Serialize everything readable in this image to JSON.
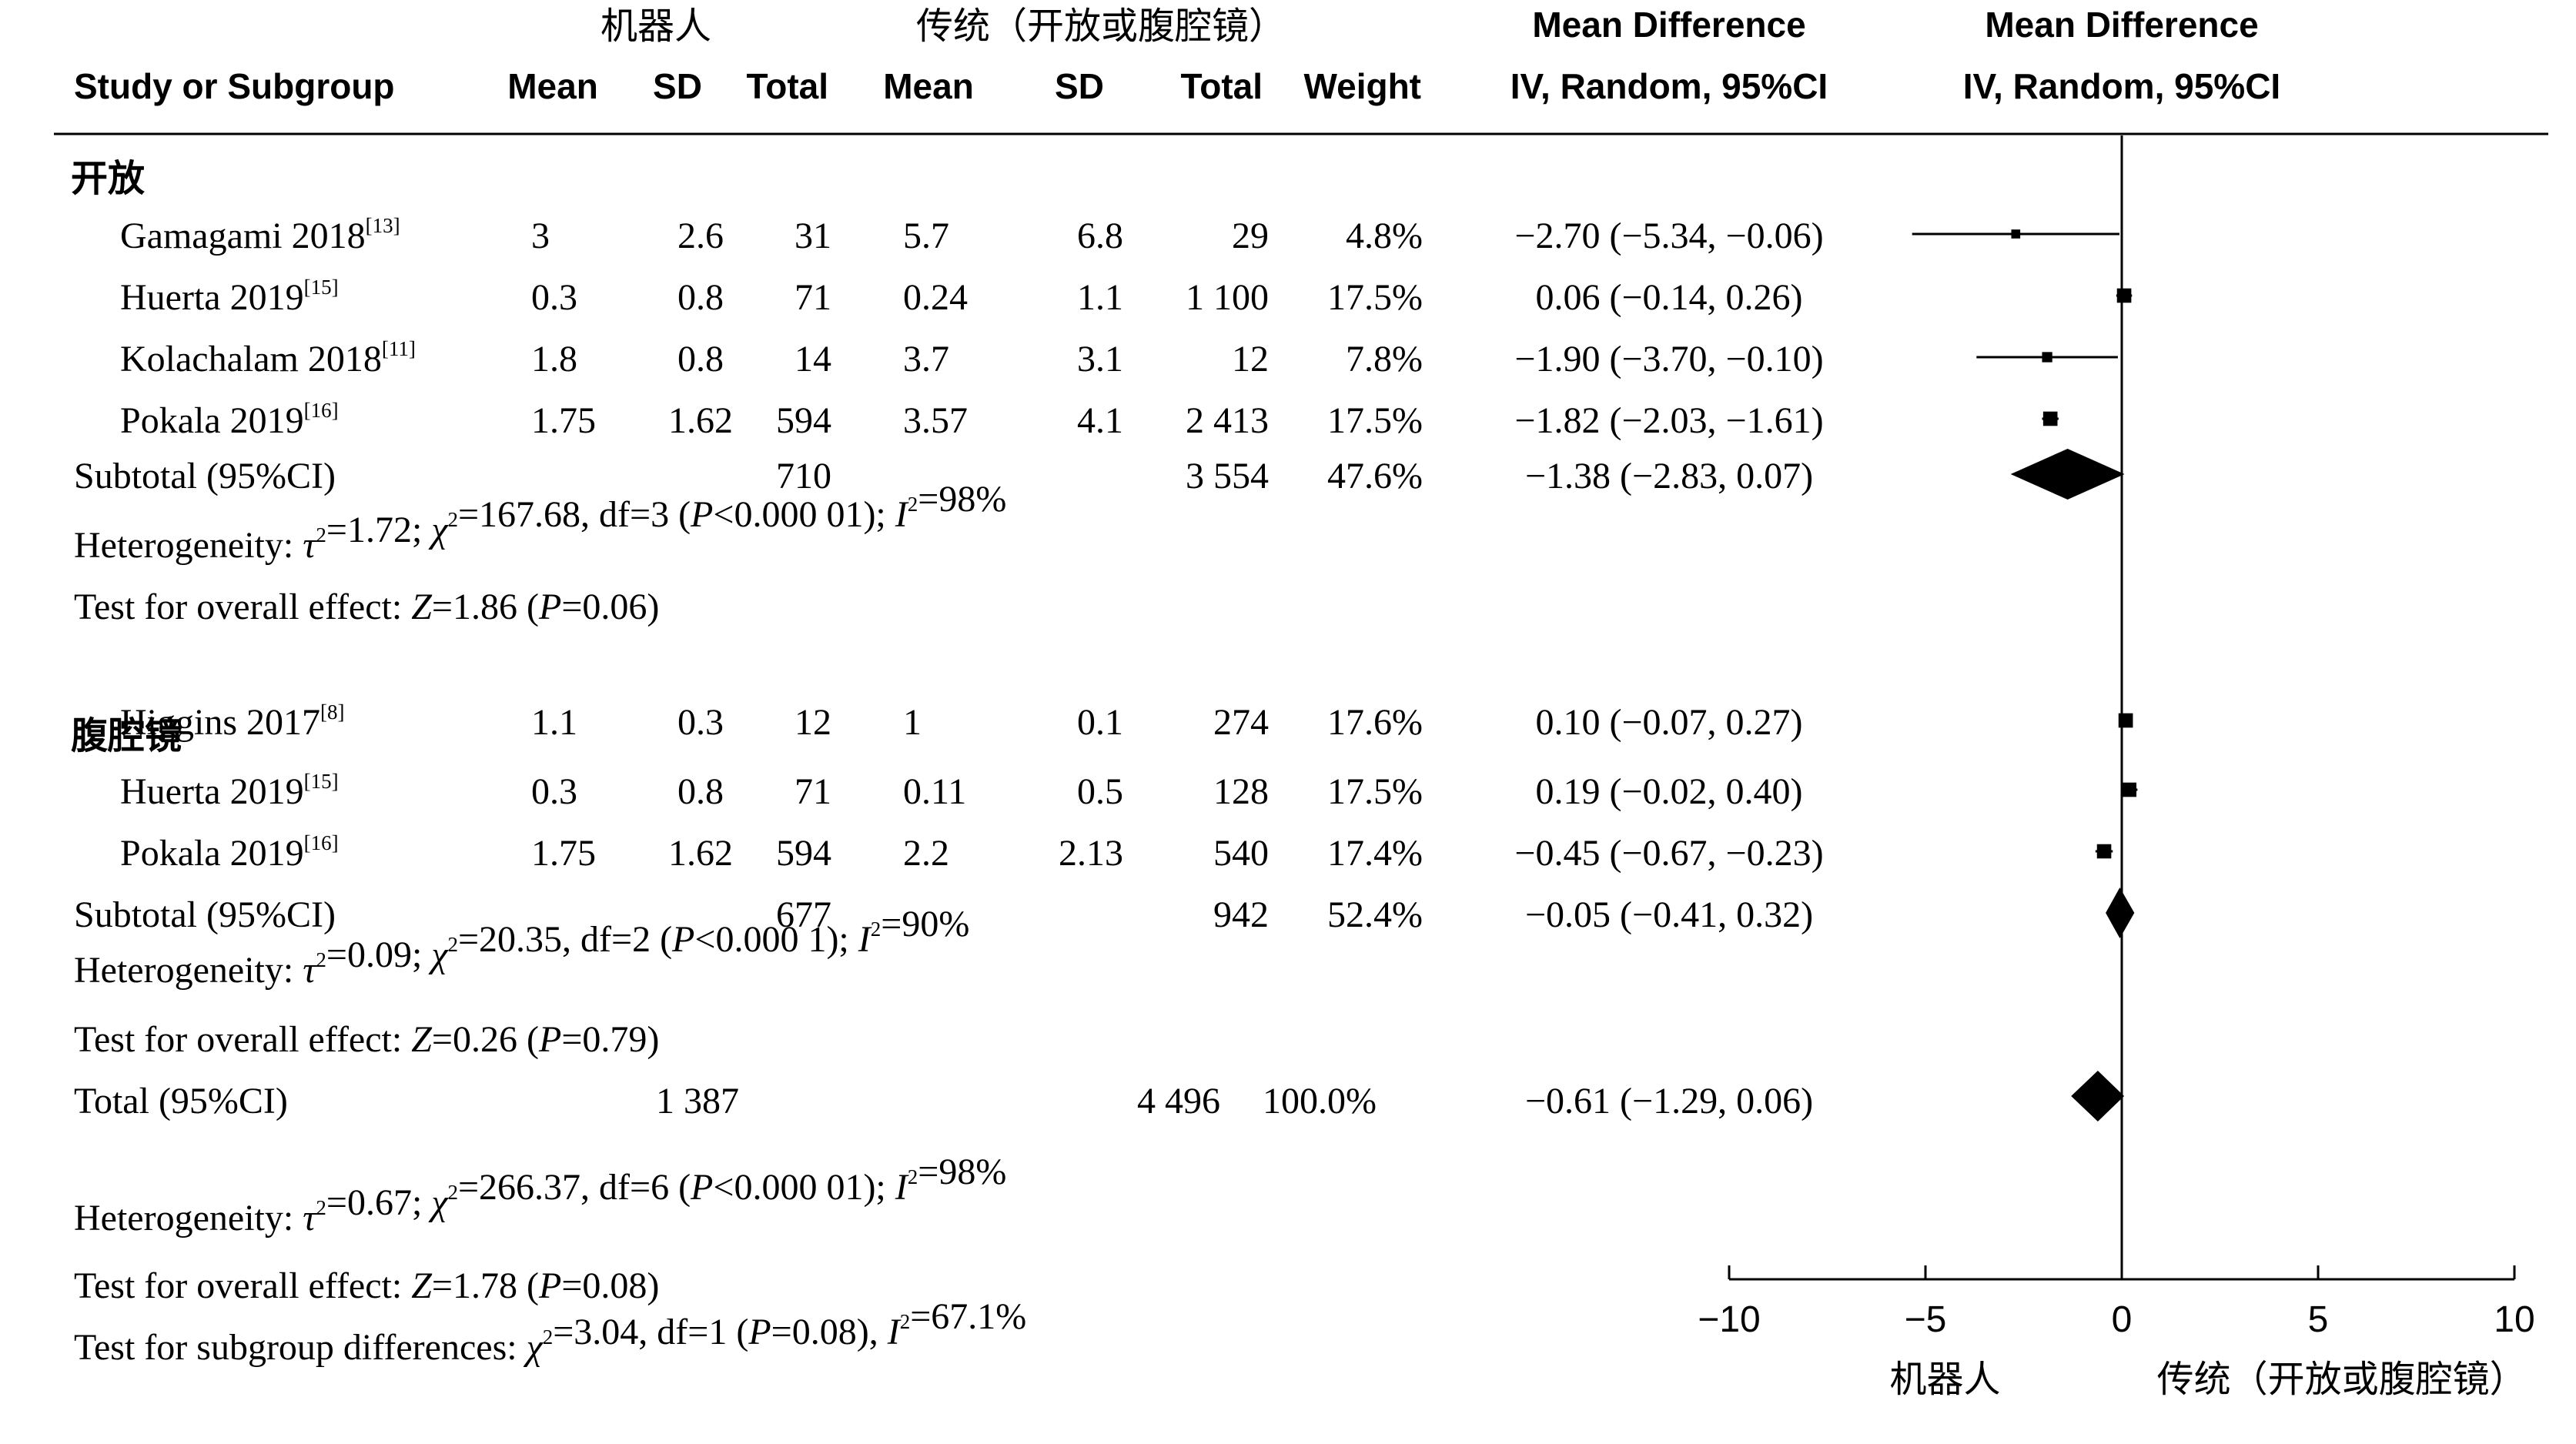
{
  "header": {
    "group1_name": "机器人",
    "group2_name": "传统（开放或腹腔镜）",
    "md_title": "Mean Difference",
    "md_method": "IV, Random, 95%CI",
    "plot_title": "Mean Difference",
    "plot_method": "IV, Random, 95%CI",
    "col_study": "Study or Subgroup",
    "col_mean1": "Mean",
    "col_sd1": "SD",
    "col_total1": "Total",
    "col_mean2": "Mean",
    "col_sd2": "SD",
    "col_total2": "Total",
    "col_weight": "Weight"
  },
  "chart_data": {
    "type": "forest",
    "xlim": [
      -10,
      10
    ],
    "xticks": [
      "−10",
      "−5",
      "0",
      "5",
      "10"
    ],
    "x_left_label": "机器人",
    "x_right_label": "传统（开放或腹腔镜）",
    "subgroups": [
      {
        "name": "开放",
        "studies": [
          {
            "study": "Gamagami 2018",
            "ref": "[13]",
            "mean1": "3",
            "sd1": "2.6",
            "total1": "31",
            "mean2": "5.7",
            "sd2": "6.8",
            "total2": "29",
            "weight": "4.8%",
            "ci_text": "−2.70 (−5.34, −0.06)",
            "md": -2.7,
            "lo": -5.34,
            "hi": -0.06
          },
          {
            "study": "Huerta 2019",
            "ref": "[15]",
            "mean1": "0.3",
            "sd1": "0.8",
            "total1": "71",
            "mean2": "0.24",
            "sd2": "1.1",
            "total2": "1 100",
            "weight": "17.5%",
            "ci_text": "0.06 (−0.14, 0.26)",
            "md": 0.06,
            "lo": -0.14,
            "hi": 0.26
          },
          {
            "study": "Kolachalam 2018",
            "ref": "[11]",
            "mean1": "1.8",
            "sd1": "0.8",
            "total1": "14",
            "mean2": "3.7",
            "sd2": "3.1",
            "total2": "12",
            "weight": "7.8%",
            "ci_text": "−1.90 (−3.70, −0.10)",
            "md": -1.9,
            "lo": -3.7,
            "hi": -0.1
          },
          {
            "study": "Pokala 2019",
            "ref": "[16]",
            "mean1": "1.75",
            "sd1": "1.62",
            "total1": "594",
            "mean2": "3.57",
            "sd2": "4.1",
            "total2": "2 413",
            "weight": "17.5%",
            "ci_text": "−1.82 (−2.03, −1.61)",
            "md": -1.82,
            "lo": -2.03,
            "hi": -1.61
          }
        ],
        "subtotal": {
          "label": "Subtotal (95%CI)",
          "total1": "710",
          "total2": "3 554",
          "weight": "47.6%",
          "ci_text": "−1.38 (−2.83, 0.07)",
          "md": -1.38,
          "lo": -2.83,
          "hi": 0.07
        },
        "heterogeneity": "Heterogeneity: τ²=1.72; χ²=167.68, df=3 (P<0.000 01); I²=98%",
        "overall": "Test for overall effect: Z=1.86 (P=0.06)"
      },
      {
        "name": "腹腔镜",
        "studies": [
          {
            "study": "Higgins 2017",
            "ref": "[8]",
            "mean1": "1.1",
            "sd1": "0.3",
            "total1": "12",
            "mean2": "1",
            "sd2": "0.1",
            "total2": "274",
            "weight": "17.6%",
            "ci_text": "0.10 (−0.07, 0.27)",
            "md": 0.1,
            "lo": -0.07,
            "hi": 0.27
          },
          {
            "study": "Huerta 2019",
            "ref": "[15]",
            "mean1": "0.3",
            "sd1": "0.8",
            "total1": "71",
            "mean2": "0.11",
            "sd2": "0.5",
            "total2": "128",
            "weight": "17.5%",
            "ci_text": "0.19 (−0.02, 0.40)",
            "md": 0.19,
            "lo": -0.02,
            "hi": 0.4
          },
          {
            "study": "Pokala 2019",
            "ref": "[16]",
            "mean1": "1.75",
            "sd1": "1.62",
            "total1": "594",
            "mean2": "2.2",
            "sd2": "2.13",
            "total2": "540",
            "weight": "17.4%",
            "ci_text": "−0.45 (−0.67, −0.23)",
            "md": -0.45,
            "lo": -0.67,
            "hi": -0.23
          }
        ],
        "subtotal": {
          "label": "Subtotal (95%CI)",
          "total1": "677",
          "total2": "942",
          "weight": "52.4%",
          "ci_text": "−0.05 (−0.41, 0.32)",
          "md": -0.05,
          "lo": -0.41,
          "hi": 0.32
        },
        "heterogeneity": "Heterogeneity: τ²=0.09; χ²=20.35, df=2 (P<0.000 1); I²=90%",
        "overall": "Test for overall effect: Z=0.26 (P=0.79)"
      }
    ],
    "total": {
      "label": "Total (95%CI)",
      "total1": "1 387",
      "total2": "4 496",
      "weight": "100.0%",
      "ci_text": "−0.61 (−1.29, 0.06)",
      "md": -0.61,
      "lo": -1.29,
      "hi": 0.06
    },
    "total_heterogeneity": "Heterogeneity: τ²=0.67; χ²=266.37, df=6 (P<0.000 01); I²=98%",
    "total_overall": "Test for overall effect: Z=1.78 (P=0.08)",
    "subgroup_differences": "Test for subgroup differences: χ²=3.04, df=1 (P=0.08), I²=67.1%"
  }
}
